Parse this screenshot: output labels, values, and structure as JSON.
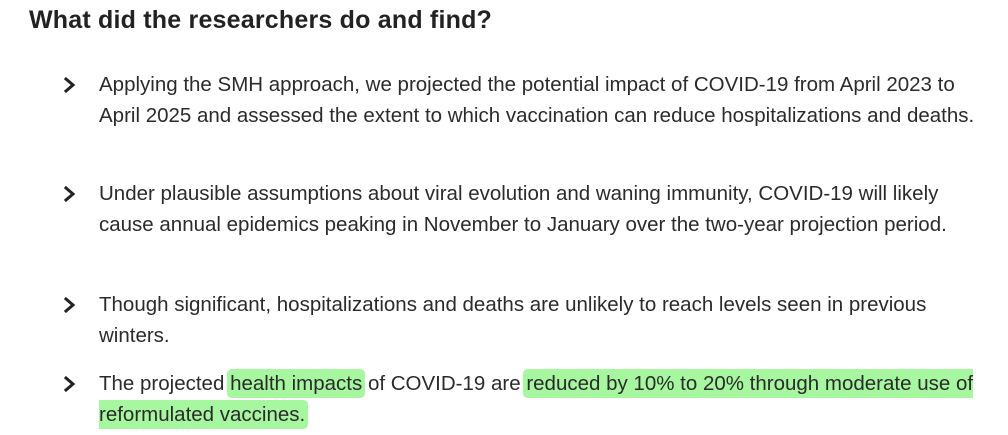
{
  "section": {
    "heading": "What did the researchers do and find?"
  },
  "bullets": [
    {
      "icon": "chevron-right-icon",
      "text": "Applying the SMH approach, we projected the potential impact of COVID-19 from April 2023 to April 2025 and assessed the extent to which vaccination can reduce hospitalizations and deaths."
    },
    {
      "icon": "chevron-right-icon",
      "text": "Under plausible assumptions about viral evolution and waning immunity, COVID-19 will likely cause annual epidemics peaking in November to January over the two-year projection period."
    },
    {
      "icon": "chevron-right-icon",
      "text": "Though significant, hospitalizations and deaths are unlikely to reach levels seen in previous winters."
    },
    {
      "icon": "chevron-right-icon",
      "segments": {
        "s1": "The projected ",
        "s2": "health impacts",
        "s3": " of COVID-19 are ",
        "s4": "reduced by 10% to 20% through moderate use of reformulated vaccines."
      }
    }
  ],
  "highlight_color": "#a6f7a0"
}
